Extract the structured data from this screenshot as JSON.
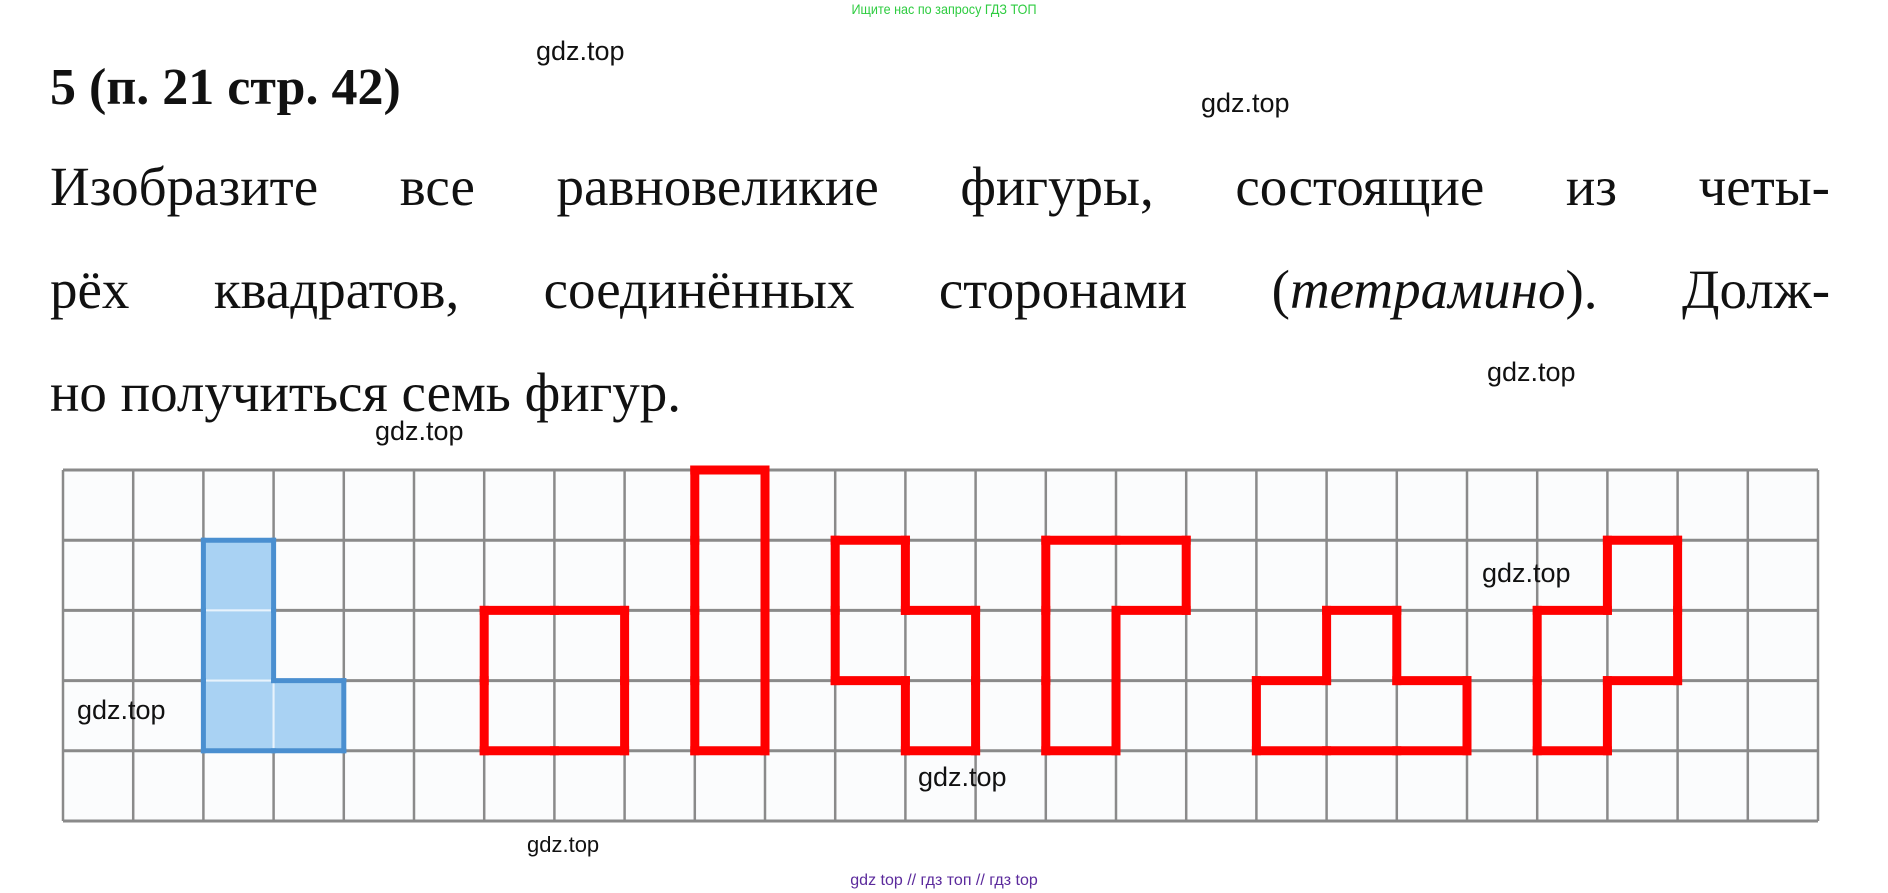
{
  "header_note": "Ищите нас по запросу ГДЗ ТОП",
  "task_title": "5 (п. 21 стр. 42)",
  "task_text": {
    "line1": "Изобразите все равновеликие фигуры, состоящие из четы-",
    "line2_before": "рёх квадратов, соединённых сторонами (",
    "line2_italic": "тетрамино",
    "line2_after": "). Долж-",
    "line3": "но получиться семь фигур."
  },
  "watermark": "gdz.top",
  "footer": "gdz top  //  гдз топ  //  гдз top",
  "grid": {
    "columns": 25,
    "rows": 5
  },
  "colors": {
    "given_fill": "#a9d2f3",
    "given_stroke": "#4a8fd0",
    "answer_stroke": "#ff0000",
    "grid_line": "#8a8a8a"
  },
  "figures": [
    {
      "name": "given-l-tetromino",
      "kind": "given",
      "cells": [
        [
          2,
          1
        ],
        [
          2,
          2
        ],
        [
          2,
          3
        ],
        [
          3,
          3
        ]
      ]
    },
    {
      "name": "square-tetromino",
      "kind": "answer",
      "cells": [
        [
          6,
          2
        ],
        [
          7,
          2
        ],
        [
          6,
          3
        ],
        [
          7,
          3
        ]
      ]
    },
    {
      "name": "i-tetromino",
      "kind": "answer",
      "cells": [
        [
          9,
          0
        ],
        [
          9,
          1
        ],
        [
          9,
          2
        ],
        [
          9,
          3
        ]
      ]
    },
    {
      "name": "s-tetromino",
      "kind": "answer",
      "cells": [
        [
          11,
          1
        ],
        [
          11,
          2
        ],
        [
          12,
          2
        ],
        [
          12,
          3
        ]
      ]
    },
    {
      "name": "j-tetromino",
      "kind": "answer",
      "cells": [
        [
          14,
          1
        ],
        [
          15,
          1
        ],
        [
          14,
          2
        ],
        [
          14,
          3
        ]
      ]
    },
    {
      "name": "t-tetromino",
      "kind": "answer",
      "cells": [
        [
          18,
          2
        ],
        [
          17,
          3
        ],
        [
          18,
          3
        ],
        [
          19,
          3
        ]
      ]
    },
    {
      "name": "z-tetromino",
      "kind": "answer",
      "cells": [
        [
          22,
          1
        ],
        [
          22,
          2
        ],
        [
          21,
          2
        ],
        [
          21,
          3
        ]
      ]
    }
  ]
}
